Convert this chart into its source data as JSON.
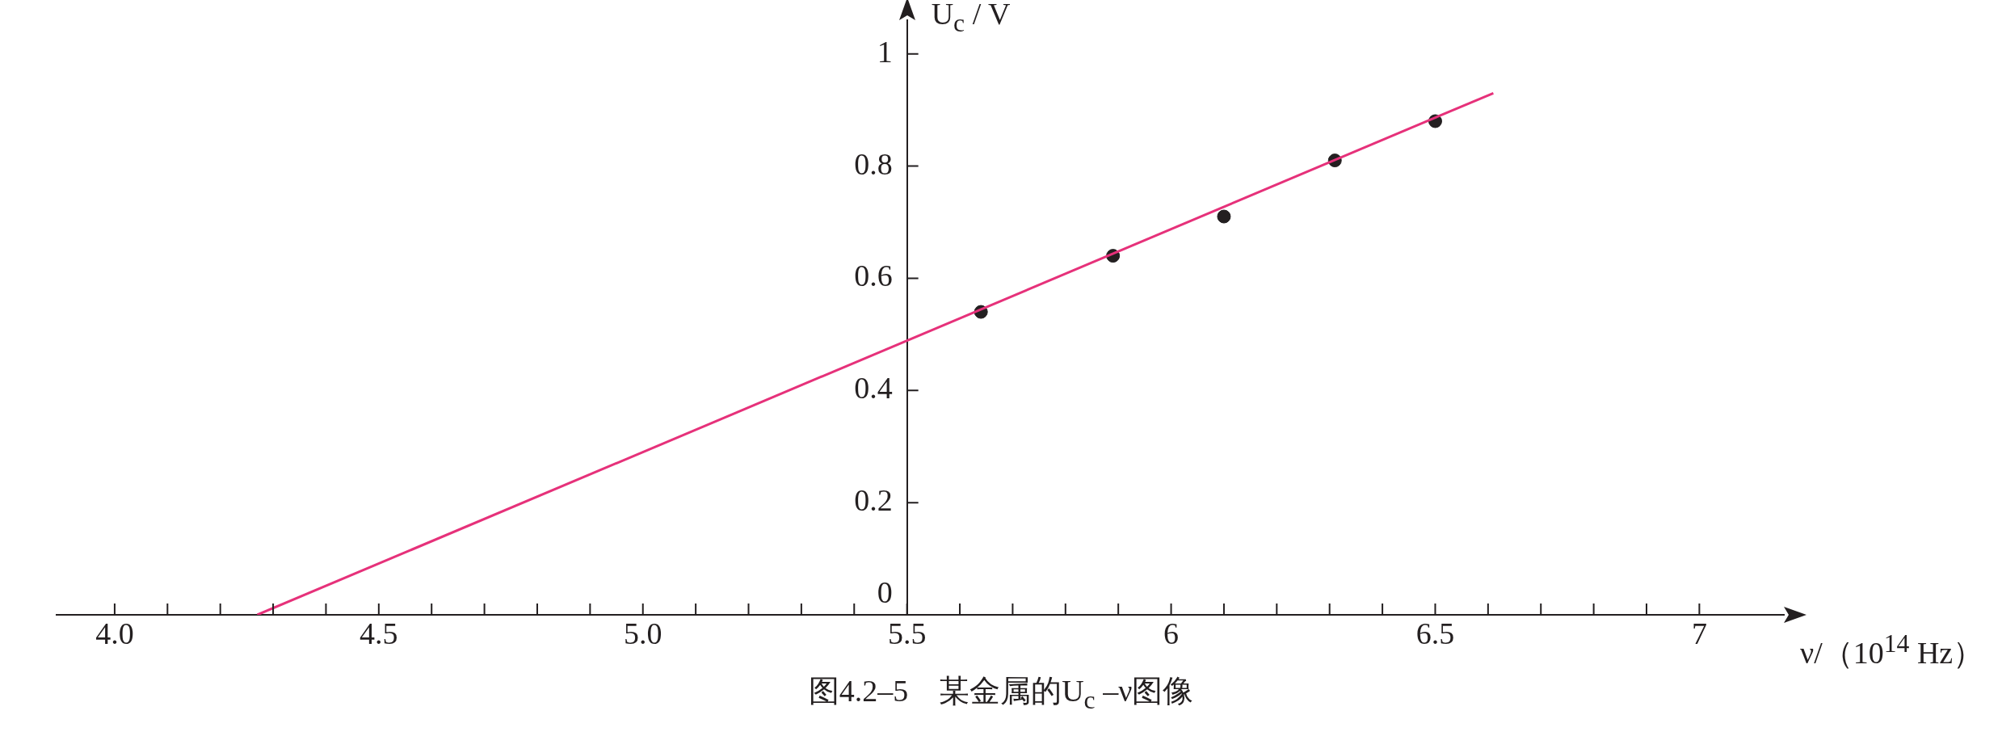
{
  "chart_data": {
    "type": "scatter",
    "title": "图4.2–5　某金属的U$_{c}$ –ν图像",
    "xlabel": "ν/（10$^{14}$ Hz）",
    "ylabel": "U$_{c}$ / V",
    "xlim": [
      3.89,
      7.16
    ],
    "ylim": [
      0,
      1.06
    ],
    "xticks": [
      {
        "value": 4.0,
        "label": "4.0"
      },
      {
        "value": 4.1,
        "label": null
      },
      {
        "value": 4.2,
        "label": null
      },
      {
        "value": 4.3,
        "label": null
      },
      {
        "value": 4.4,
        "label": null
      },
      {
        "value": 4.5,
        "label": "4.5"
      },
      {
        "value": 4.6,
        "label": null
      },
      {
        "value": 4.7,
        "label": null
      },
      {
        "value": 4.8,
        "label": null
      },
      {
        "value": 4.9,
        "label": null
      },
      {
        "value": 5.0,
        "label": "5.0"
      },
      {
        "value": 5.1,
        "label": null
      },
      {
        "value": 5.2,
        "label": null
      },
      {
        "value": 5.3,
        "label": null
      },
      {
        "value": 5.4,
        "label": null
      },
      5.5,
      {
        "value": 5.6,
        "label": null
      },
      {
        "value": 5.7,
        "label": null
      },
      {
        "value": 5.8,
        "label": null
      },
      {
        "value": 5.9,
        "label": null
      },
      6,
      {
        "value": 6.1,
        "label": null
      },
      {
        "value": 6.2,
        "label": null
      },
      {
        "value": 6.3,
        "label": null
      },
      {
        "value": 6.4,
        "label": null
      },
      6.5,
      {
        "value": 6.6,
        "label": null
      },
      {
        "value": 6.7,
        "label": null
      },
      {
        "value": 6.8,
        "label": null
      },
      {
        "value": 6.9,
        "label": null
      },
      7
    ],
    "yticks": [
      0,
      0.2,
      0.4,
      0.6,
      0.8,
      1
    ],
    "grid": false,
    "series": [
      {
        "type": "line",
        "color": "#e6317a",
        "x": [
          4.27,
          6.61
        ],
        "values": [
          0,
          0.93
        ]
      },
      {
        "type": "scatter",
        "marker": "circle",
        "color": "#231f20",
        "x": [
          5.64,
          5.89,
          6.1,
          6.31,
          6.5
        ],
        "values": [
          0.54,
          0.64,
          0.71,
          0.81,
          0.88
        ]
      }
    ]
  }
}
